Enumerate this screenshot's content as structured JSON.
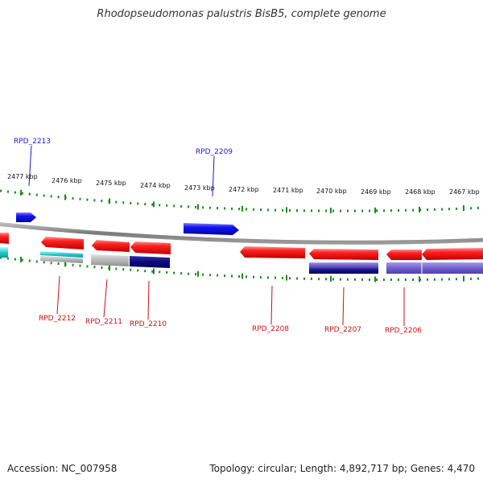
{
  "title": "Rhodopseudomonas palustris BisB5, complete genome",
  "footer": {
    "accession": "Accession: NC_007958",
    "summary": "Topology: circular; Length: 4,892,717 bp; Genes: 4,470"
  },
  "ruler_labels": [
    "2477 kbp",
    "2476 kbp",
    "2475 kbp",
    "2474 kbp",
    "2473 kbp",
    "2472 kbp",
    "2471 kbp",
    "2470 kbp",
    "2469 kbp",
    "2468 kbp",
    "2467 kbp"
  ],
  "genes_forward": [
    {
      "label": "RPD_2213",
      "color": "#1a1aee"
    },
    {
      "label": "RPD_2209",
      "color": "#1a1aee"
    }
  ],
  "genes_reverse": [
    {
      "label": "RPD_2212",
      "color": "#ee1111"
    },
    {
      "label": "RPD_2211",
      "color": "#ee1111"
    },
    {
      "label": "RPD_2210",
      "color": "#ee1111"
    },
    {
      "label": "RPD_2208",
      "color": "#ee1111"
    },
    {
      "label": "RPD_2207",
      "color": "#ee1111"
    },
    {
      "label": "RPD_2206",
      "color": "#ee1111"
    }
  ],
  "colors": {
    "forward_label": "#1a1acc",
    "reverse_label": "#cc1111",
    "backbone": "#888888",
    "ticks": "#1e8a1e",
    "cyan": "#22cccc",
    "navy": "#0a0a80",
    "gray": "#aaaaaa",
    "purple": "#7060cc"
  }
}
